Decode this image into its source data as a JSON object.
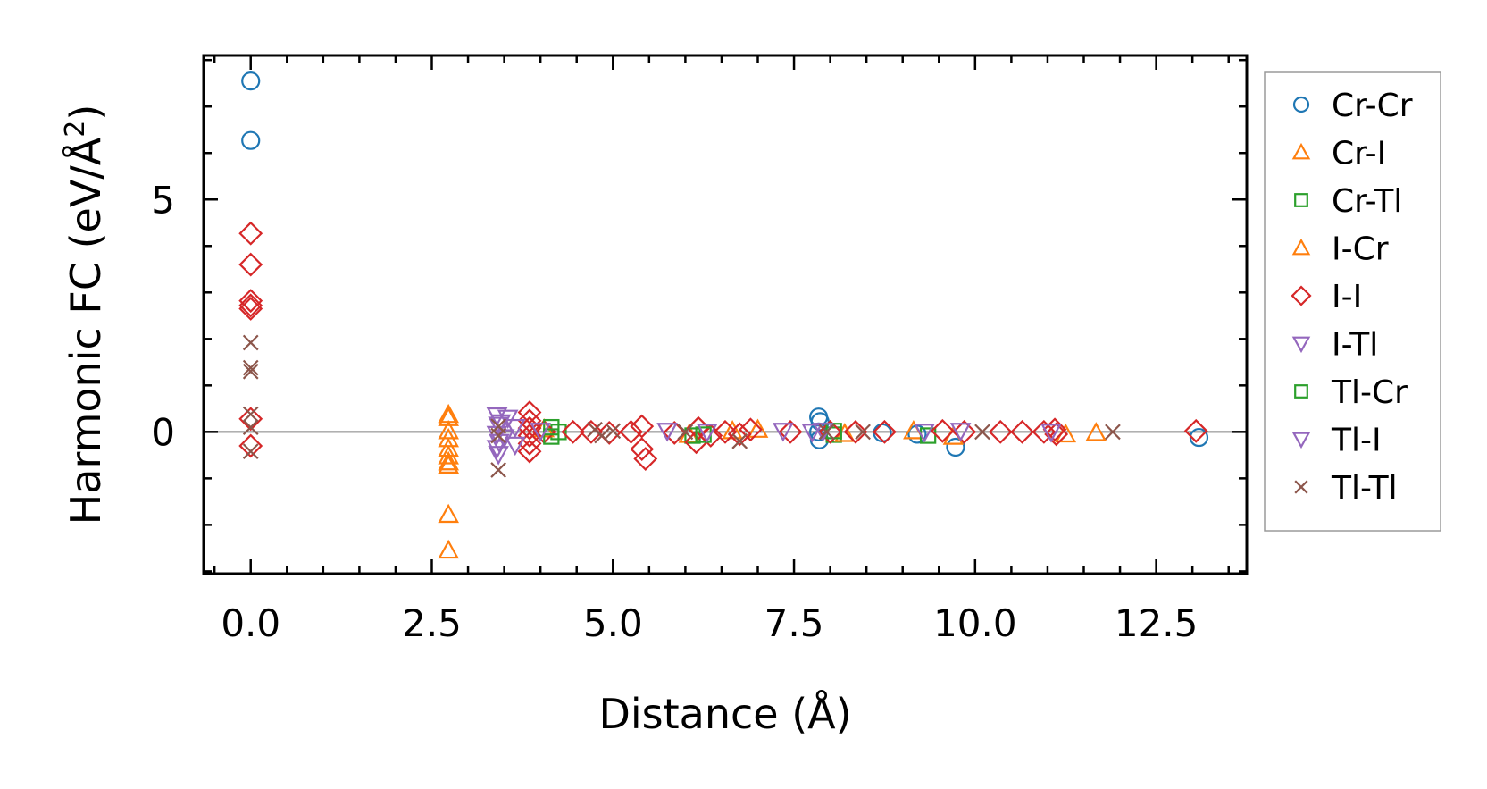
{
  "chart_data": {
    "type": "scatter",
    "xlabel": "Distance (Å)",
    "ylabel_main": "Harmonic FC (eV/Å",
    "ylabel_sup": "2",
    "ylabel_close": ")",
    "xlim": [
      -0.65,
      13.75
    ],
    "ylim": [
      -3.05,
      8.1
    ],
    "xticks": [
      0.0,
      2.5,
      5.0,
      7.5,
      10.0,
      12.5
    ],
    "xtick_labels": [
      "0.0",
      "2.5",
      "5.0",
      "7.5",
      "10.0",
      "12.5"
    ],
    "yticks": [
      0,
      5
    ],
    "ytick_labels": [
      "0",
      "5"
    ],
    "x_minor_step": 0.5,
    "y_minor_step": 1,
    "zero_line": true,
    "legend_position": "outside-right",
    "series": [
      {
        "name": "Cr-Cr",
        "marker": "circle",
        "color": "#1f77b4",
        "points": [
          [
            0,
            7.55
          ],
          [
            0,
            6.27
          ],
          [
            7.84,
            0.32
          ],
          [
            7.86,
            0.22
          ],
          [
            7.85,
            -0.17
          ],
          [
            9.73,
            -0.33
          ],
          [
            13.09,
            -0.12
          ],
          [
            8.72,
            -0.02
          ],
          [
            7.84,
            0.0
          ],
          [
            9.2,
            -0.05
          ]
        ]
      },
      {
        "name": "Cr-I",
        "marker": "triangle-up",
        "color": "#ff7f0e",
        "points": [
          [
            2.73,
            0.37
          ],
          [
            2.73,
            0.02
          ],
          [
            2.73,
            -0.36
          ],
          [
            2.73,
            -0.52
          ],
          [
            2.73,
            -0.72
          ],
          [
            2.73,
            -1.78
          ],
          [
            2.73,
            -2.55
          ],
          [
            6.05,
            -0.06
          ],
          [
            7.0,
            0.05
          ],
          [
            9.15,
            0.02
          ],
          [
            9.7,
            -0.1
          ],
          [
            11.25,
            -0.05
          ],
          [
            11.67,
            -0.02
          ]
        ]
      },
      {
        "name": "Cr-Tl",
        "marker": "square",
        "color": "#2ca02c",
        "points": [
          [
            4.25,
            0.0
          ],
          [
            6.1,
            -0.08
          ],
          [
            8.05,
            -0.06
          ],
          [
            9.35,
            -0.08
          ]
        ]
      },
      {
        "name": "I-Cr",
        "marker": "triangle-up",
        "color": "#ff7f0e",
        "points": [
          [
            2.73,
            0.3
          ],
          [
            2.73,
            -0.15
          ],
          [
            2.73,
            -0.65
          ],
          [
            4.05,
            0.06
          ],
          [
            6.65,
            0.02
          ],
          [
            8.2,
            -0.04
          ]
        ]
      },
      {
        "name": "I-I",
        "marker": "diamond",
        "color": "#d62728",
        "points": [
          [
            0,
            4.27
          ],
          [
            0,
            3.6
          ],
          [
            0,
            2.82
          ],
          [
            0,
            2.72
          ],
          [
            0,
            2.65
          ],
          [
            0,
            0.28
          ],
          [
            0,
            -0.3
          ],
          [
            3.85,
            0.42
          ],
          [
            3.85,
            0.24
          ],
          [
            3.85,
            0.08
          ],
          [
            3.85,
            -0.08
          ],
          [
            3.85,
            -0.25
          ],
          [
            3.85,
            -0.42
          ],
          [
            4.05,
            0.0
          ],
          [
            4.45,
            0.0
          ],
          [
            4.7,
            0.0
          ],
          [
            4.95,
            -0.02
          ],
          [
            5.25,
            0.0
          ],
          [
            5.4,
            0.12
          ],
          [
            5.45,
            -0.58
          ],
          [
            5.4,
            -0.37
          ],
          [
            5.85,
            -0.02
          ],
          [
            6.15,
            -0.22
          ],
          [
            6.18,
            0.08
          ],
          [
            6.35,
            -0.08
          ],
          [
            6.55,
            0.0
          ],
          [
            6.75,
            -0.05
          ],
          [
            6.9,
            0.05
          ],
          [
            7.45,
            0.0
          ],
          [
            8.0,
            0.0
          ],
          [
            8.35,
            0.0
          ],
          [
            8.75,
            0.0
          ],
          [
            9.55,
            0.02
          ],
          [
            9.85,
            0.0
          ],
          [
            10.35,
            0.0
          ],
          [
            10.65,
            0.0
          ],
          [
            10.95,
            0.0
          ],
          [
            11.1,
            0.05
          ],
          [
            11.12,
            -0.05
          ],
          [
            13.05,
            0.02
          ]
        ]
      },
      {
        "name": "I-Tl",
        "marker": "triangle-down",
        "color": "#9467bd",
        "points": [
          [
            3.4,
            0.35
          ],
          [
            3.42,
            0.15
          ],
          [
            3.4,
            -0.05
          ],
          [
            3.43,
            -0.22
          ],
          [
            3.4,
            -0.35
          ],
          [
            3.42,
            -0.48
          ],
          [
            3.65,
            0.1
          ],
          [
            5.75,
            0.02
          ],
          [
            7.35,
            0.02
          ],
          [
            7.75,
            0.0
          ],
          [
            9.3,
            0.0
          ]
        ]
      },
      {
        "name": "Tl-Cr",
        "marker": "square",
        "color": "#2ca02c",
        "points": [
          [
            4.15,
            0.1
          ],
          [
            4.15,
            -0.1
          ],
          [
            6.25,
            -0.06
          ],
          [
            8.05,
            0.02
          ]
        ]
      },
      {
        "name": "Tl-I",
        "marker": "triangle-down",
        "color": "#9467bd",
        "points": [
          [
            3.45,
            0.2
          ],
          [
            3.5,
            -0.12
          ],
          [
            3.55,
            0.3
          ],
          [
            3.65,
            -0.28
          ],
          [
            4.0,
            0.02
          ],
          [
            6.3,
            0.0
          ],
          [
            7.9,
            0.02
          ],
          [
            9.8,
            0.02
          ],
          [
            11.05,
            0.0
          ]
        ]
      },
      {
        "name": "Tl-Tl",
        "marker": "x",
        "color": "#8c564b",
        "points": [
          [
            0,
            1.92
          ],
          [
            0,
            1.38
          ],
          [
            0,
            1.3
          ],
          [
            0,
            0.38
          ],
          [
            0,
            0.1
          ],
          [
            0,
            -0.42
          ],
          [
            3.42,
            0.12
          ],
          [
            3.42,
            -0.08
          ],
          [
            3.42,
            -0.82
          ],
          [
            4.75,
            0.05
          ],
          [
            4.85,
            -0.08
          ],
          [
            5.0,
            0.02
          ],
          [
            6.0,
            0.0
          ],
          [
            6.75,
            -0.2
          ],
          [
            7.95,
            0.0
          ],
          [
            8.45,
            0.0
          ],
          [
            10.1,
            0.0
          ],
          [
            11.9,
            0.0
          ]
        ]
      }
    ]
  }
}
